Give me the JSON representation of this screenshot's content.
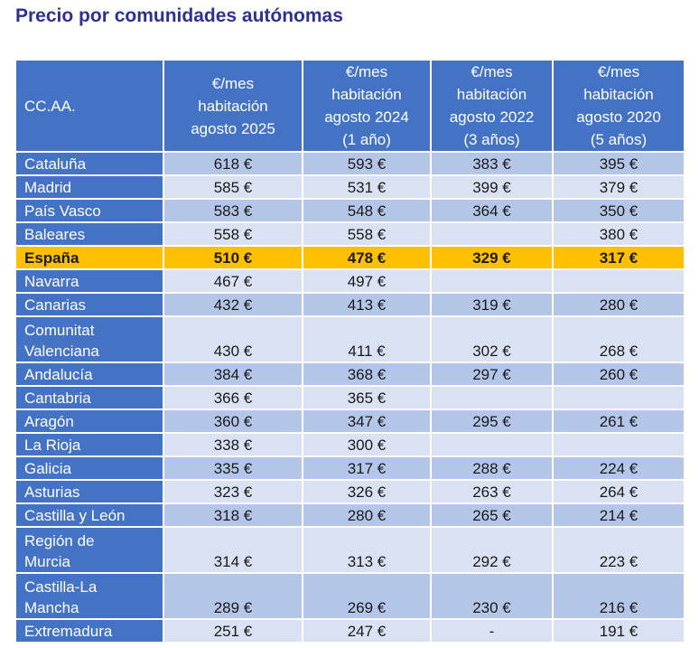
{
  "title": "Precio por comunidades autónomas",
  "table": {
    "headers": [
      {
        "lines": [
          "CC.AA."
        ]
      },
      {
        "lines": [
          "€/mes",
          "habitación",
          "agosto 2025"
        ]
      },
      {
        "lines": [
          "€/mes",
          "habitación",
          "agosto 2024",
          "(1 año)"
        ]
      },
      {
        "lines": [
          "€/mes",
          "habitación",
          "agosto 2022",
          "(3 años)"
        ]
      },
      {
        "lines": [
          "€/mes",
          "habitación",
          "agosto 2020",
          "(5 años)"
        ]
      }
    ],
    "rows": [
      {
        "name": "Cataluña",
        "values": [
          "618 €",
          "593 €",
          "383 €",
          "395 €"
        ]
      },
      {
        "name": "Madrid",
        "values": [
          "585 €",
          "531 €",
          "399 €",
          "379 €"
        ]
      },
      {
        "name": "País Vasco",
        "values": [
          "583 €",
          "548 €",
          "364 €",
          "350 €"
        ]
      },
      {
        "name": "Baleares",
        "values": [
          "558 €",
          "558 €",
          "",
          "380 €"
        ]
      },
      {
        "name": "España",
        "values": [
          "510 €",
          "478 €",
          "329 €",
          "317 €"
        ]
      },
      {
        "name": "Navarra",
        "values": [
          "467 €",
          "497 €",
          "",
          ""
        ]
      },
      {
        "name": "Canarias",
        "values": [
          "432 €",
          "413 €",
          "319 €",
          "280 €"
        ]
      },
      {
        "name_lines": [
          "Comunitat",
          "Valenciana"
        ],
        "values": [
          "430 €",
          "411 €",
          "302 €",
          "268 €"
        ]
      },
      {
        "name": "Andalucía",
        "values": [
          "384 €",
          "368 €",
          "297 €",
          "260 €"
        ]
      },
      {
        "name": "Cantabria",
        "values": [
          "366 €",
          "365 €",
          "",
          ""
        ]
      },
      {
        "name": "Aragón",
        "values": [
          "360 €",
          "347 €",
          "295 €",
          "261 €"
        ]
      },
      {
        "name": "La Rioja",
        "values": [
          "338 €",
          "300 €",
          "",
          ""
        ]
      },
      {
        "name": "Galicia",
        "values": [
          "335 €",
          "317 €",
          "288 €",
          "224 €"
        ]
      },
      {
        "name": "Asturias",
        "values": [
          "323 €",
          "326 €",
          "263 €",
          "264 €"
        ]
      },
      {
        "name": "Castilla y León",
        "values": [
          "318 €",
          "280 €",
          "265 €",
          "214 €"
        ]
      },
      {
        "name_lines": [
          "Región de",
          "Murcia"
        ],
        "values": [
          "314 €",
          "313 €",
          "292 €",
          "223 €"
        ]
      },
      {
        "name_lines": [
          "Castilla-La",
          "Mancha"
        ],
        "values": [
          "289 €",
          "269 €",
          "230 €",
          "216 €"
        ]
      },
      {
        "name": "Extremadura",
        "values": [
          "251 €",
          "247 €",
          "-",
          "191 €"
        ]
      }
    ]
  }
}
